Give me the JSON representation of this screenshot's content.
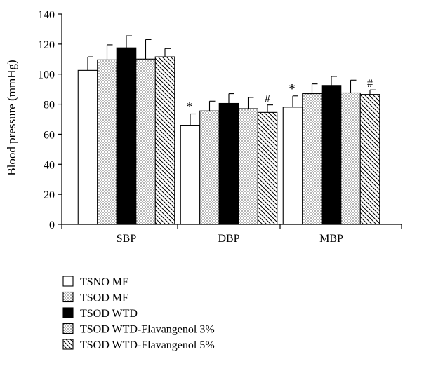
{
  "chart_data": {
    "type": "bar",
    "title": "",
    "xlabel": "",
    "ylabel": "Blood pressure (mmHg)",
    "ylim": [
      0,
      140
    ],
    "yticks": [
      0,
      20,
      40,
      60,
      80,
      100,
      120,
      140
    ],
    "grid": false,
    "legend_position": "bottom-left",
    "categories": [
      "SBP",
      "DBP",
      "MBP"
    ],
    "series": [
      {
        "name": "TSNO MF",
        "pattern": "white",
        "values": [
          102.5,
          66,
          78
        ],
        "errors": [
          9,
          7.5,
          7.5
        ],
        "annotations": [
          "",
          "*",
          "*"
        ]
      },
      {
        "name": "TSOD MF",
        "pattern": "dots",
        "values": [
          109.5,
          75.5,
          87
        ],
        "errors": [
          10,
          6.5,
          6.5
        ],
        "annotations": [
          "",
          "",
          ""
        ]
      },
      {
        "name": "TSOD WTD",
        "pattern": "black",
        "values": [
          117.5,
          80.5,
          92.5
        ],
        "errors": [
          8,
          6.5,
          6
        ],
        "annotations": [
          "",
          "",
          ""
        ]
      },
      {
        "name": "TSOD WTD-Flavangenol 3%",
        "pattern": "dots",
        "values": [
          110,
          77,
          87.5
        ],
        "errors": [
          13,
          7.5,
          8.5
        ],
        "annotations": [
          "",
          "",
          ""
        ]
      },
      {
        "name": "TSOD WTD-Flavangenol 5%",
        "pattern": "hatch",
        "values": [
          111.5,
          74.5,
          86.5
        ],
        "errors": [
          5.5,
          5,
          3
        ],
        "annotations": [
          "",
          "#",
          "#"
        ]
      }
    ]
  }
}
